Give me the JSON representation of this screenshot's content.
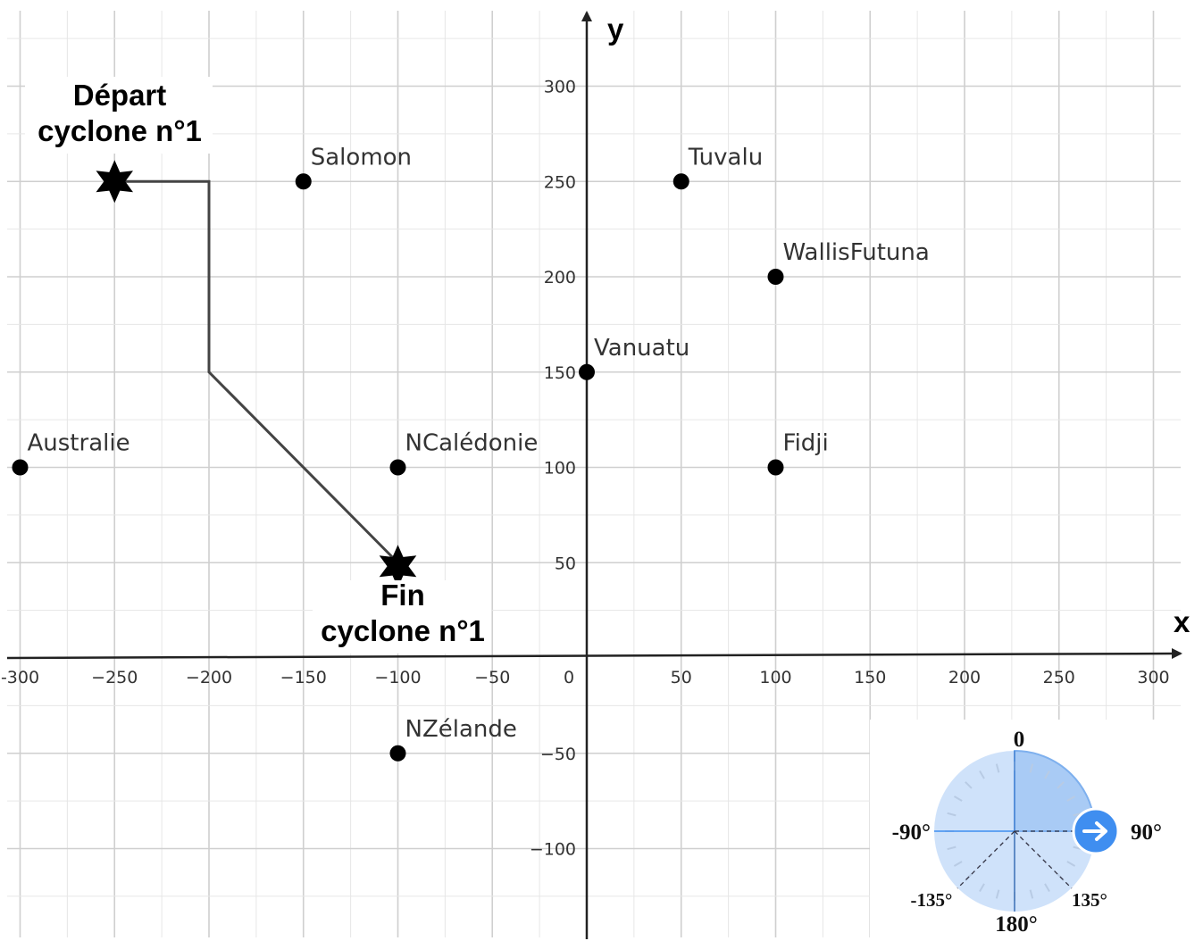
{
  "chart_data": {
    "type": "scatter",
    "xlim": [
      -300,
      300
    ],
    "ylim": [
      -150,
      320
    ],
    "grid": true,
    "xlabel": "x",
    "ylabel": "y",
    "x_ticks": [
      -300,
      -250,
      -200,
      -150,
      -100,
      -50,
      0,
      50,
      100,
      150,
      200,
      250,
      300
    ],
    "x_tick_labels": [
      "-300",
      "−250",
      "−200",
      "−150",
      "−100",
      "−50",
      "0",
      "50",
      "100",
      "150",
      "200",
      "250",
      "300"
    ],
    "y_ticks": [
      -100,
      -50,
      50,
      100,
      150,
      200,
      250,
      300
    ],
    "y_tick_labels": [
      "−100",
      "−50",
      "50",
      "100",
      "150",
      "200",
      "250",
      "300"
    ],
    "points": [
      {
        "label": "Salomon",
        "x": -150,
        "y": 250
      },
      {
        "label": "Tuvalu",
        "x": 50,
        "y": 250
      },
      {
        "label": "WallisFutuna",
        "x": 100,
        "y": 200
      },
      {
        "label": "Vanuatu",
        "x": 0,
        "y": 150
      },
      {
        "label": "Australie",
        "x": -300,
        "y": 100
      },
      {
        "label": "NCalédonie",
        "x": -100,
        "y": 100
      },
      {
        "label": "Fidji",
        "x": 100,
        "y": 100
      },
      {
        "label": "NZélande",
        "x": -100,
        "y": -50
      }
    ],
    "cyclone_path": [
      {
        "x": -250,
        "y": 250
      },
      {
        "x": -200,
        "y": 250
      },
      {
        "x": -200,
        "y": 150
      },
      {
        "x": -100,
        "y": 50
      }
    ],
    "start_label": [
      "Départ",
      "cyclone n°1"
    ],
    "end_label": [
      "Fin",
      "cyclone n°1"
    ]
  },
  "direction_dial": {
    "labels": {
      "north": "0",
      "east": "90°",
      "west": "-90°",
      "south": "180°",
      "south_west": "-135°",
      "south_east": "135°"
    },
    "selected_heading_deg": 90,
    "colors": {
      "disc": "#cfe2fa",
      "sector": "#a9cbf5",
      "accent": "#3f8ef0"
    }
  }
}
